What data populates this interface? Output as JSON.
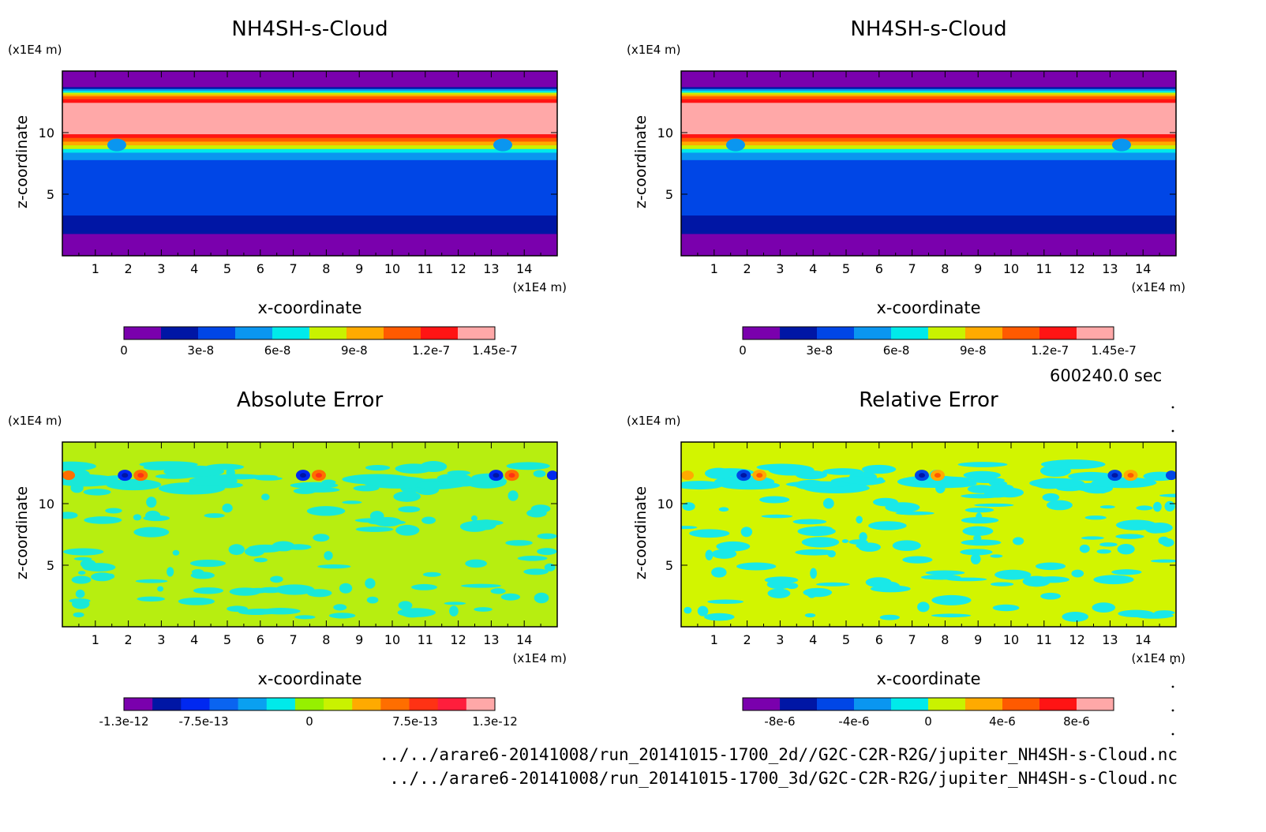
{
  "figure": {
    "time_label": "600240.0 sec",
    "footer_lines": [
      "../../arare6-20141008/run_20141015-1700_2d//G2C-C2R-R2G/jupiter_NH4SH-s-Cloud.nc",
      "../../arare6-20141008/run_20141015-1700_3d/G2C-C2R-R2G/jupiter_NH4SH-s-Cloud.nc"
    ]
  },
  "chart_data": [
    {
      "type": "heatmap",
      "title": "NH4SH-s-Cloud",
      "xlabel": "x-coordinate",
      "ylabel": "z-coordinate",
      "x_unit": "(x1E4 m)",
      "y_unit": "(x1E4 m)",
      "x_ticks": [
        "1",
        "2",
        "3",
        "4",
        "5",
        "6",
        "7",
        "8",
        "9",
        "10",
        "11",
        "12",
        "13",
        "14"
      ],
      "y_ticks": [
        "5",
        "10"
      ],
      "xlim": [
        0,
        15
      ],
      "ylim": [
        0,
        15
      ],
      "colorbar": {
        "colors": [
          "#7a00ad",
          "#0016a5",
          "#0046e6",
          "#0a96f0",
          "#00eaea",
          "#c9f200",
          "#ffaa00",
          "#ff5a00",
          "#ff1414",
          "#ffa8a8"
        ],
        "tick_labels": [
          "0",
          "3e-8",
          "6e-8",
          "9e-8",
          "1.2e-7",
          "1.45e-7"
        ]
      },
      "field": "cloud"
    },
    {
      "type": "heatmap",
      "title": "NH4SH-s-Cloud",
      "xlabel": "x-coordinate",
      "ylabel": "z-coordinate",
      "x_unit": "(x1E4 m)",
      "y_unit": "(x1E4 m)",
      "x_ticks": [
        "1",
        "2",
        "3",
        "4",
        "5",
        "6",
        "7",
        "8",
        "9",
        "10",
        "11",
        "12",
        "13",
        "14"
      ],
      "y_ticks": [
        "5",
        "10"
      ],
      "xlim": [
        0,
        15
      ],
      "ylim": [
        0,
        15
      ],
      "colorbar": {
        "colors": [
          "#7a00ad",
          "#0016a5",
          "#0046e6",
          "#0a96f0",
          "#00eaea",
          "#c9f200",
          "#ffaa00",
          "#ff5a00",
          "#ff1414",
          "#ffa8a8"
        ],
        "tick_labels": [
          "0",
          "3e-8",
          "6e-8",
          "9e-8",
          "1.2e-7",
          "1.45e-7"
        ]
      },
      "field": "cloud"
    },
    {
      "type": "heatmap",
      "title": "Absolute Error",
      "xlabel": "x-coordinate",
      "ylabel": "z-coordinate",
      "x_unit": "(x1E4 m)",
      "y_unit": "(x1E4 m)",
      "x_ticks": [
        "1",
        "2",
        "3",
        "4",
        "5",
        "6",
        "7",
        "8",
        "9",
        "10",
        "11",
        "12",
        "13",
        "14"
      ],
      "y_ticks": [
        "5",
        "10"
      ],
      "xlim": [
        0,
        15
      ],
      "ylim": [
        0,
        15
      ],
      "colorbar": {
        "colors": [
          "#7a00ad",
          "#0016a5",
          "#0028f0",
          "#0a64f0",
          "#0aa0f0",
          "#00eaea",
          "#96f000",
          "#c9f200",
          "#ffaa00",
          "#ff6e00",
          "#ff3214",
          "#ff1e3c",
          "#ffa8a8"
        ],
        "tick_labels": [
          "-1.3e-12",
          "-7.5e-13",
          "0",
          "7.5e-13",
          "1.3e-12"
        ]
      },
      "field": "abs_error"
    },
    {
      "type": "heatmap",
      "title": "Relative Error",
      "xlabel": "x-coordinate",
      "ylabel": "z-coordinate",
      "x_unit": "(x1E4 m)",
      "y_unit": "(x1E4 m)",
      "x_ticks": [
        "1",
        "2",
        "3",
        "4",
        "5",
        "6",
        "7",
        "8",
        "9",
        "10",
        "11",
        "12",
        "13",
        "14"
      ],
      "y_ticks": [
        "5",
        "10"
      ],
      "xlim": [
        0,
        15
      ],
      "ylim": [
        0,
        15
      ],
      "colorbar": {
        "colors": [
          "#7a00ad",
          "#0016a5",
          "#0046e6",
          "#0a96f0",
          "#00eaea",
          "#c9f200",
          "#ffaa00",
          "#ff5a00",
          "#ff1414",
          "#ffa8a8"
        ],
        "tick_labels": [
          "-8e-6",
          "-4e-6",
          "0",
          "4e-6",
          "8e-6"
        ]
      },
      "field": "rel_error"
    }
  ]
}
